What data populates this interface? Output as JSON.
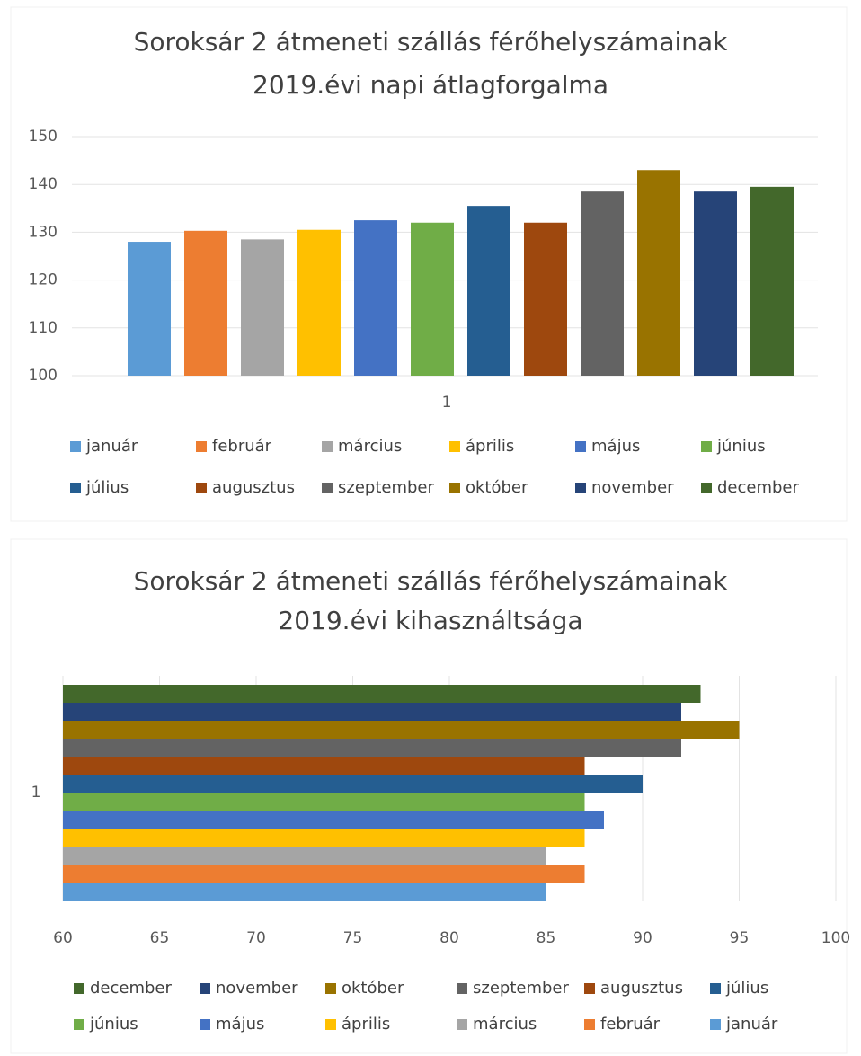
{
  "chart_data": [
    {
      "type": "bar",
      "orientation": "vertical",
      "title": [
        "Soroksár 2 átmeneti szállás férőhelyszámainak",
        "2019.évi napi átlagforgalma"
      ],
      "categories": [
        "1"
      ],
      "ylim": [
        100,
        150
      ],
      "yticks": [
        100,
        110,
        120,
        130,
        140,
        150
      ],
      "grid": true,
      "legend": "bottom",
      "series": [
        {
          "name": "január",
          "color": "#5b9bd5",
          "values": [
            128
          ]
        },
        {
          "name": "február",
          "color": "#ed7d31",
          "values": [
            130.3
          ]
        },
        {
          "name": "március",
          "color": "#a5a5a5",
          "values": [
            128.5
          ]
        },
        {
          "name": "április",
          "color": "#ffc000",
          "values": [
            130.5
          ]
        },
        {
          "name": "május",
          "color": "#4472c4",
          "values": [
            132.5
          ]
        },
        {
          "name": "június",
          "color": "#70ad47",
          "values": [
            132
          ]
        },
        {
          "name": "július",
          "color": "#255e91",
          "values": [
            135.5
          ]
        },
        {
          "name": "augusztus",
          "color": "#9e480e",
          "values": [
            132
          ]
        },
        {
          "name": "szeptember",
          "color": "#636363",
          "values": [
            138.5
          ]
        },
        {
          "name": "október",
          "color": "#997300",
          "values": [
            143
          ]
        },
        {
          "name": "november",
          "color": "#264478",
          "values": [
            138.5
          ]
        },
        {
          "name": "december",
          "color": "#43682b",
          "values": [
            139.5
          ]
        }
      ]
    },
    {
      "type": "bar",
      "orientation": "horizontal",
      "title": [
        "Soroksár 2 átmeneti szállás férőhelyszámainak",
        "2019.évi kihasználtsága"
      ],
      "categories": [
        "1"
      ],
      "xlim": [
        60,
        100
      ],
      "xticks": [
        60,
        65,
        70,
        75,
        80,
        85,
        90,
        95,
        100
      ],
      "grid": true,
      "legend": "bottom",
      "series": [
        {
          "name": "január",
          "color": "#5b9bd5",
          "values": [
            85
          ]
        },
        {
          "name": "február",
          "color": "#ed7d31",
          "values": [
            87
          ]
        },
        {
          "name": "március",
          "color": "#a5a5a5",
          "values": [
            85
          ]
        },
        {
          "name": "április",
          "color": "#ffc000",
          "values": [
            87
          ]
        },
        {
          "name": "május",
          "color": "#4472c4",
          "values": [
            88
          ]
        },
        {
          "name": "június",
          "color": "#70ad47",
          "values": [
            87
          ]
        },
        {
          "name": "július",
          "color": "#255e91",
          "values": [
            90
          ]
        },
        {
          "name": "augusztus",
          "color": "#9e480e",
          "values": [
            87
          ]
        },
        {
          "name": "szeptember",
          "color": "#636363",
          "values": [
            92
          ]
        },
        {
          "name": "október",
          "color": "#997300",
          "values": [
            95
          ]
        },
        {
          "name": "november",
          "color": "#264478",
          "values": [
            92
          ]
        },
        {
          "name": "december",
          "color": "#43682b",
          "values": [
            93
          ]
        }
      ]
    }
  ]
}
